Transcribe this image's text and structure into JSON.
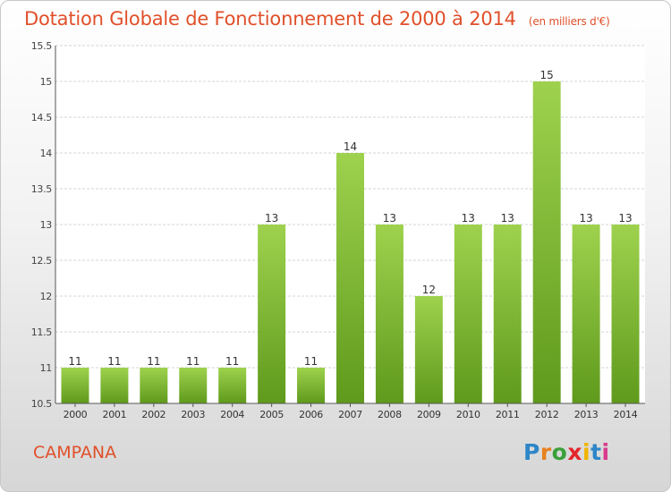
{
  "title": "Dotation Globale de Fonctionnement de 2000 à 2014",
  "unit_note": "(en milliers d'€)",
  "commune": "CAMPANA",
  "logo_text": "Proxiti",
  "chart_data": {
    "type": "bar",
    "categories": [
      "2000",
      "2001",
      "2002",
      "2003",
      "2004",
      "2005",
      "2006",
      "2007",
      "2008",
      "2009",
      "2010",
      "2011",
      "2012",
      "2013",
      "2014"
    ],
    "values": [
      11,
      11,
      11,
      11,
      11,
      13,
      11,
      14,
      13,
      12,
      13,
      13,
      15,
      13,
      13
    ],
    "ylim": [
      10.5,
      15.5
    ],
    "yticks": [
      "10.5",
      "11",
      "11.5",
      "12",
      "12.5",
      "13",
      "13.5",
      "14",
      "14.5",
      "15",
      "15.5"
    ],
    "xlabel": "",
    "ylabel": "",
    "grid": true,
    "colors": {
      "bar_top": "#9ed24e",
      "bar_bottom": "#5f9a1c",
      "text": "#e0502a"
    }
  }
}
